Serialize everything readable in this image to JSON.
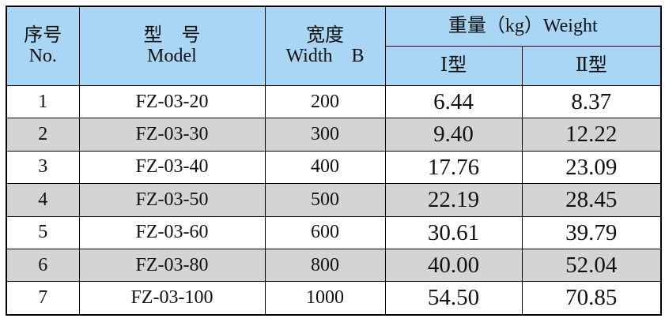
{
  "header": {
    "no": {
      "zh": "序号",
      "en": "No."
    },
    "model": {
      "zh": "型　号",
      "en": "Model"
    },
    "width": {
      "zh": "宽度",
      "en": "Width　B"
    },
    "weight": {
      "title": "重量（kg）Weight",
      "type1": "Ⅰ型",
      "type2": "Ⅱ型"
    }
  },
  "table": {
    "rows": [
      [
        "1",
        "FZ-03-20",
        "200",
        "6.44",
        "8.37"
      ],
      [
        "2",
        "FZ-03-30",
        "300",
        "9.40",
        "12.22"
      ],
      [
        "3",
        "FZ-03-40",
        "400",
        "17.76",
        "23.09"
      ],
      [
        "4",
        "FZ-03-50",
        "500",
        "22.19",
        "28.45"
      ],
      [
        "5",
        "FZ-03-60",
        "600",
        "30.61",
        "39.79"
      ],
      [
        "6",
        "FZ-03-80",
        "800",
        "40.00",
        "52.04"
      ],
      [
        "7",
        "FZ-03-100",
        "1000",
        "54.50",
        "70.85"
      ]
    ]
  }
}
